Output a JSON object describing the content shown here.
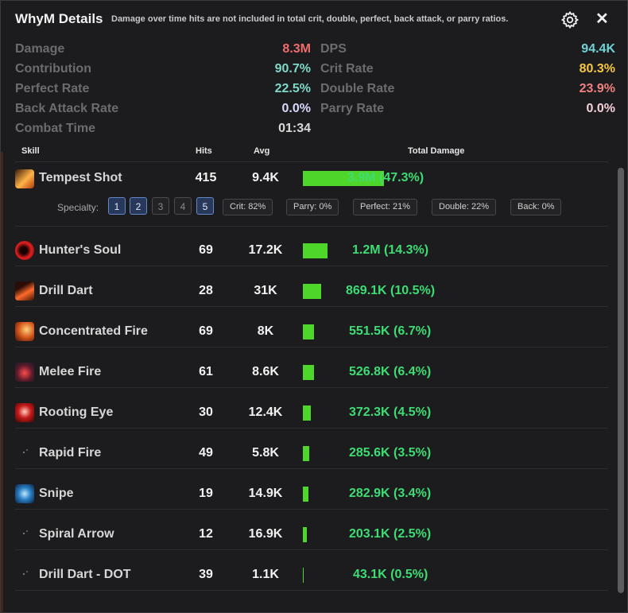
{
  "header": {
    "title": "WhyM Details",
    "subtitle": "Damage over time hits are not included in total crit, double, perfect, back attack, or parry ratios.",
    "settings_icon": "gear-icon",
    "close_label": "✕"
  },
  "stats": {
    "damage_label": "Damage",
    "damage_value": "8.3M",
    "dps_label": "DPS",
    "dps_value": "94.4K",
    "contribution_label": "Contribution",
    "contribution_value": "90.7%",
    "crit_label": "Crit Rate",
    "crit_value": "80.3%",
    "perfect_label": "Perfect Rate",
    "perfect_value": "22.5%",
    "double_label": "Double Rate",
    "double_value": "23.9%",
    "back_label": "Back Attack Rate",
    "back_value": "0.0%",
    "parry_label": "Parry Rate",
    "parry_value": "0.0%",
    "combat_label": "Combat Time",
    "combat_value": "01:34"
  },
  "colors": {
    "damage": "#f06d6d",
    "dps": "#6fd3d6",
    "contribution": "#7ed9c9",
    "crit": "#f5c842",
    "perfect": "#7ed9c9",
    "double": "#f08080",
    "back": "#d8d8ff",
    "parry": "#f4d0d8",
    "combat": "#d9d9d9",
    "bar": "#4fd62a",
    "total": "#3ddd74"
  },
  "columns": {
    "skill": "Skill",
    "hits": "Hits",
    "avg": "Avg",
    "total": "Total Damage"
  },
  "specialty": {
    "label": "Specialty:",
    "buttons": [
      {
        "label": "1",
        "active": true
      },
      {
        "label": "2",
        "active": true
      },
      {
        "label": "3",
        "active": false
      },
      {
        "label": "4",
        "active": false
      },
      {
        "label": "5",
        "active": true
      }
    ],
    "chips": [
      "Crit: 82%",
      "Parry: 0%",
      "Perfect: 21%",
      "Double: 22%",
      "Back: 0%"
    ]
  },
  "skills": [
    {
      "name": "Tempest Shot",
      "hits": "415",
      "avg": "9.4K",
      "total": "3.9M (47.3%)",
      "share": 47.3,
      "icon": "tempest-shot-icon"
    },
    {
      "name": "Hunter's Soul",
      "hits": "69",
      "avg": "17.2K",
      "total": "1.2M (14.3%)",
      "share": 14.3,
      "icon": "hunters-soul-icon"
    },
    {
      "name": "Drill Dart",
      "hits": "28",
      "avg": "31K",
      "total": "869.1K (10.5%)",
      "share": 10.5,
      "icon": "drill-dart-icon"
    },
    {
      "name": "Concentrated Fire",
      "hits": "69",
      "avg": "8K",
      "total": "551.5K (6.7%)",
      "share": 6.7,
      "icon": "concentrated-fire-icon"
    },
    {
      "name": "Melee Fire",
      "hits": "61",
      "avg": "8.6K",
      "total": "526.8K (6.4%)",
      "share": 6.4,
      "icon": "melee-fire-icon"
    },
    {
      "name": "Rooting Eye",
      "hits": "30",
      "avg": "12.4K",
      "total": "372.3K (4.5%)",
      "share": 4.5,
      "icon": "rooting-eye-icon"
    },
    {
      "name": "Rapid Fire",
      "hits": "49",
      "avg": "5.8K",
      "total": "285.6K (3.5%)",
      "share": 3.5,
      "icon": "rapid-fire-icon"
    },
    {
      "name": "Snipe",
      "hits": "19",
      "avg": "14.9K",
      "total": "282.9K (3.4%)",
      "share": 3.4,
      "icon": "snipe-icon"
    },
    {
      "name": "Spiral Arrow",
      "hits": "12",
      "avg": "16.9K",
      "total": "203.1K (2.5%)",
      "share": 2.5,
      "icon": "spiral-arrow-icon"
    },
    {
      "name": "Drill Dart - DOT",
      "hits": "39",
      "avg": "1.1K",
      "total": "43.1K (0.5%)",
      "share": 0.5,
      "icon": "drill-dart-dot-icon"
    }
  ]
}
